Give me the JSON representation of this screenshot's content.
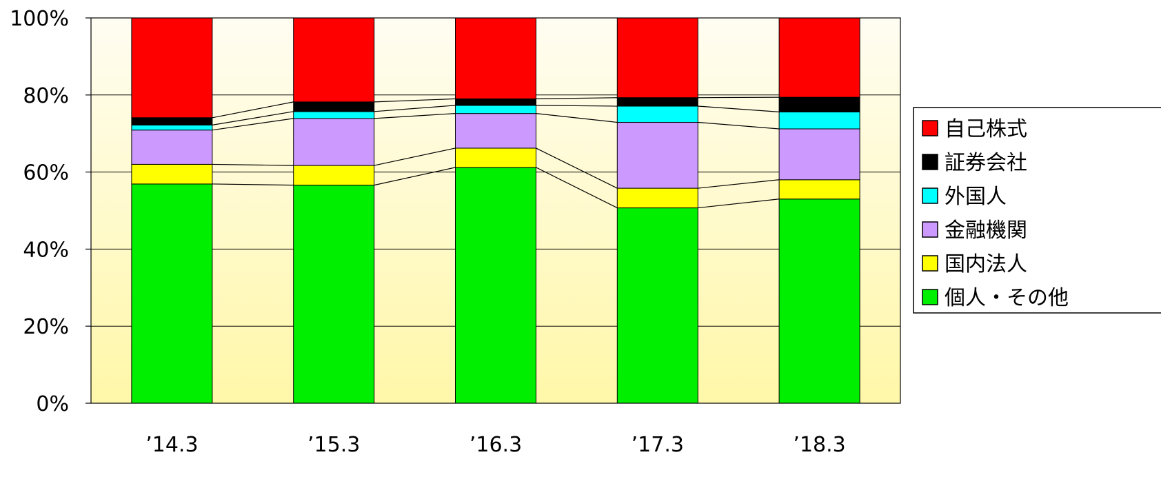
{
  "chart_data": {
    "type": "bar",
    "stacked": true,
    "percent_axis": true,
    "categories": [
      "’14.3",
      "’15.3",
      "’16.3",
      "’17.3",
      "’18.3"
    ],
    "ylim": [
      0,
      100
    ],
    "y_ticks": [
      "0%",
      "20%",
      "40%",
      "60%",
      "80%",
      "100%"
    ],
    "y_tick_values": [
      0,
      20,
      40,
      60,
      80,
      100
    ],
    "grid": true,
    "legend_position": "right",
    "series_lines": true,
    "series": [
      {
        "name": "個人・その他",
        "color": "#00ee00",
        "values": [
          56.9,
          56.6,
          61.2,
          50.7,
          53.0
        ]
      },
      {
        "name": "国内法人",
        "color": "#ffff00",
        "values": [
          5.1,
          5.1,
          5.0,
          5.1,
          5.0
        ]
      },
      {
        "name": "金融機関",
        "color": "#cc99ff",
        "values": [
          8.9,
          12.2,
          9.0,
          17.1,
          13.2
        ]
      },
      {
        "name": "外国人",
        "color": "#00ffff",
        "values": [
          1.3,
          1.8,
          2.1,
          4.2,
          4.4
        ]
      },
      {
        "name": "証券会社",
        "color": "#000000",
        "values": [
          1.9,
          2.5,
          1.7,
          2.2,
          3.8
        ]
      },
      {
        "name": "自己株式",
        "color": "#ff0000",
        "values": [
          25.9,
          21.8,
          21.0,
          20.7,
          20.6
        ]
      }
    ],
    "legend_order": [
      "自己株式",
      "証券会社",
      "外国人",
      "金融機関",
      "国内法人",
      "個人・その他"
    ],
    "background_gradient": [
      "#fffdf2",
      "#fff7a8"
    ]
  }
}
